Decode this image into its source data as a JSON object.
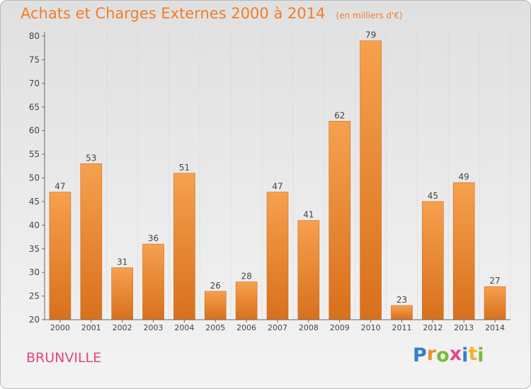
{
  "chart_data": {
    "type": "bar",
    "title": "Achats et Charges Externes 2000 à 2014",
    "unit_note": "(en milliers d'€)",
    "categories": [
      "2000",
      "2001",
      "2002",
      "2003",
      "2004",
      "2005",
      "2006",
      "2007",
      "2008",
      "2009",
      "2010",
      "2011",
      "2012",
      "2013",
      "2014"
    ],
    "values": [
      47,
      53,
      31,
      36,
      51,
      26,
      28,
      47,
      41,
      62,
      79,
      23,
      45,
      49,
      27
    ],
    "ylim": [
      20,
      80
    ],
    "yticks": [
      20,
      25,
      30,
      35,
      40,
      45,
      50,
      55,
      60,
      65,
      70,
      75,
      80
    ],
    "grid": "vertical-dotted",
    "legend": "none",
    "bar_color_top": "#f6a04e",
    "bar_color_bottom": "#d8701c"
  },
  "commune": "BRUNVILLE",
  "logo": {
    "letters": [
      "P",
      "r",
      "o",
      "x",
      "i",
      "t",
      "i"
    ],
    "colors": [
      "#2f7fd1",
      "#e8932a",
      "#7cb83a",
      "#e34a8b",
      "#2f7fd1",
      "#f0b32a",
      "#7cb83a"
    ]
  },
  "colors": {
    "title": "#f07d2a",
    "commune": "#e0477a",
    "axis": "#555555"
  }
}
